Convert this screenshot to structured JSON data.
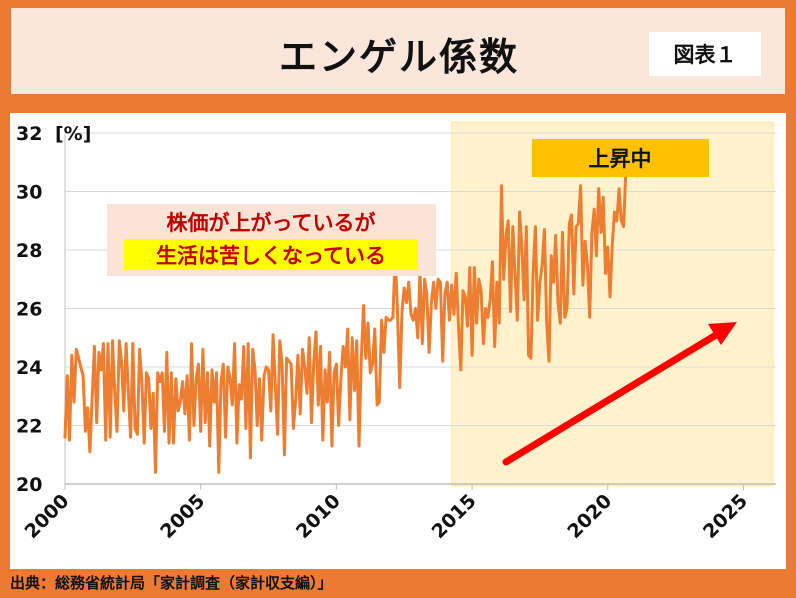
{
  "header": {
    "title": "エンゲル係数",
    "badge": "図表１"
  },
  "annotations": {
    "highlight_label": "上昇中",
    "callout_line1": "株価が上がっているが",
    "callout_line2": "生活は苦しくなっている"
  },
  "source": "出典：総務省統計局「家計調査（家計収支編）」",
  "colors": {
    "background": "#ed7a33",
    "header_bg": "#fbe6dc",
    "line": "#ed7d31",
    "highlight_bg": "#fff2cc",
    "highlight_label_bg": "#ffc000",
    "callout_bg": "#fbe3d6",
    "callout_text": "#c00000",
    "callout_highlight": "#ffff00",
    "arrow": "#ff0000"
  },
  "chart_data": {
    "type": "line",
    "title": "",
    "xlabel": "",
    "ylabel": "[%]",
    "grid": true,
    "xlim": [
      2000,
      2026.2
    ],
    "ylim": [
      20,
      32
    ],
    "yticks": [
      20,
      22,
      24,
      26,
      28,
      30,
      32
    ],
    "xticks": [
      2000,
      2005,
      2010,
      2015,
      2020,
      2025
    ],
    "highlight_range": [
      2014.25,
      2026.1
    ],
    "series": [
      {
        "name": "",
        "x_start": 2000,
        "step": 0.0833333,
        "values": [
          21.6,
          23.7,
          21.5,
          24.4,
          22.8,
          24.6,
          24.3,
          24.0,
          23.7,
          21.8,
          22.6,
          21.1,
          22.9,
          24.7,
          22.1,
          24.5,
          23.9,
          24.8,
          21.5,
          24.8,
          21.6,
          24.9,
          23.1,
          21.8,
          24.9,
          24.2,
          22.5,
          24.8,
          23.2,
          21.6,
          24.8,
          21.9,
          21.7,
          24.6,
          23.5,
          21.4,
          23.8,
          23.6,
          21.9,
          23.1,
          20.4,
          23.8,
          23.5,
          23.8,
          21.8,
          24.5,
          21.4,
          23.8,
          21.4,
          23.6,
          22.5,
          22.8,
          23.5,
          22.4,
          23.7,
          21.5,
          24.8,
          22.0,
          23.6,
          24.1,
          21.8,
          24.6,
          22.1,
          23.8,
          21.3,
          23.9,
          22.8,
          23.8,
          20.4,
          23.5,
          24.1,
          21.6,
          24.0,
          23.6,
          22.7,
          24.8,
          21.4,
          23.4,
          22.9,
          24.7,
          21.9,
          24.8,
          20.9,
          24.6,
          23.9,
          22.0,
          23.6,
          21.5,
          23.7,
          24.0,
          23.9,
          22.5,
          25.1,
          23.4,
          21.7,
          24.9,
          24.1,
          21.0,
          24.3,
          24.2,
          24.1,
          21.9,
          22.9,
          24.4,
          22.4,
          24.6,
          24.0,
          23.1,
          25.0,
          22.1,
          24.2,
          25.2,
          22.7,
          24.7,
          21.5,
          23.9,
          22.8,
          24.5,
          21.3,
          23.8,
          24.1,
          22.0,
          23.6,
          24.7,
          24.0,
          25.3,
          22.2,
          25.0,
          23.2,
          24.9,
          21.3,
          24.2,
          26.1,
          24.3,
          25.5,
          23.8,
          24.1,
          25.3,
          22.7,
          22.8,
          25.6,
          24.5,
          25.7,
          25.6,
          25.6,
          25.7,
          27.8,
          26.0,
          23.3,
          25.9,
          26.7,
          26.2,
          26.9,
          25.8,
          25.6,
          26.0,
          25.0,
          27.3,
          24.8,
          27.0,
          26.5,
          24.5,
          26.2,
          26.9,
          26.0,
          27.0,
          26.9,
          24.2,
          26.5,
          26.9,
          25.6,
          26.8,
          25.8,
          27.2,
          25.4,
          23.9,
          26.6,
          26.4,
          25.4,
          27.4,
          24.4,
          27.4,
          25.5,
          27.0,
          26.6,
          24.8,
          26.0,
          25.7,
          26.3,
          27.6,
          24.7,
          26.9,
          25.5,
          30.2,
          27.0,
          28.5,
          29.0,
          25.9,
          28.8,
          27.2,
          25.6,
          29.3,
          28.1,
          26.3,
          28.8,
          24.4,
          24.3,
          27.2,
          28.8,
          25.6,
          26.9,
          27.5,
          28.7,
          25.5,
          24.2,
          27.8,
          26.9,
          28.5,
          26.2,
          25.5,
          28.6,
          25.7,
          26.0,
          28.9,
          29.2,
          26.5,
          28.8,
          28.9,
          30.2,
          26.8,
          28.3,
          27.5,
          25.7,
          28.6,
          29.4,
          27.8,
          30.1,
          28.6,
          29.8,
          27.2,
          28.1,
          26.4,
          28.2,
          29.3,
          29.0,
          30.1,
          29.0,
          28.8,
          30.7
        ]
      }
    ]
  }
}
